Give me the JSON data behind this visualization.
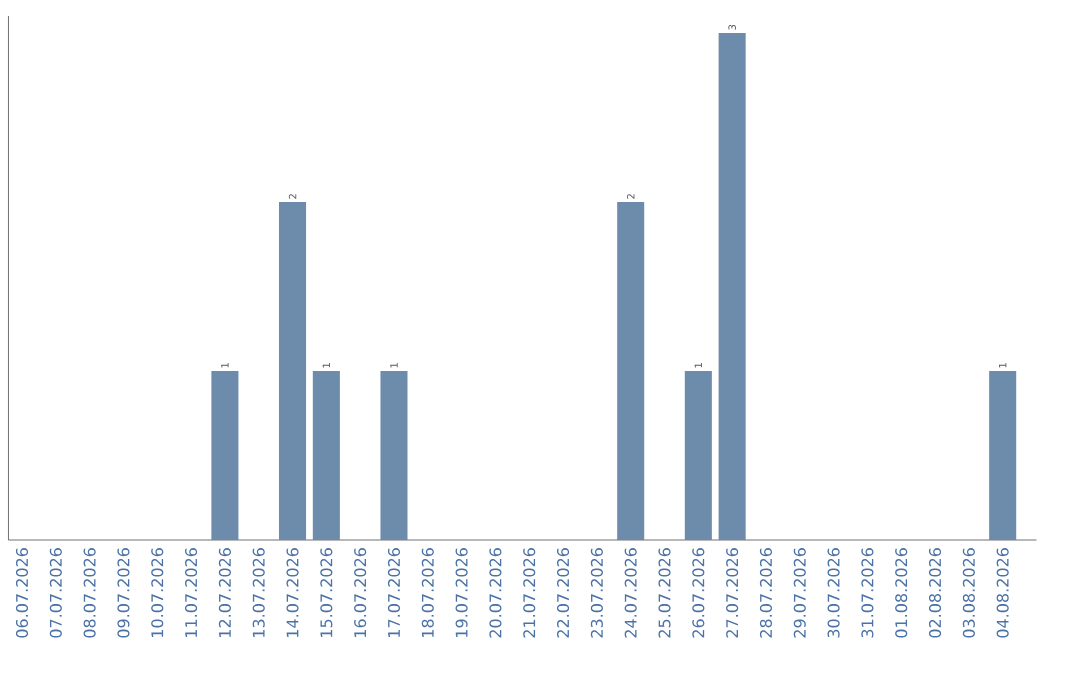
{
  "chart_data": {
    "type": "bar",
    "categories": [
      "06.07.2026",
      "07.07.2026",
      "08.07.2026",
      "09.07.2026",
      "10.07.2026",
      "11.07.2026",
      "12.07.2026",
      "13.07.2026",
      "14.07.2026",
      "15.07.2026",
      "16.07.2026",
      "17.07.2026",
      "18.07.2026",
      "19.07.2026",
      "20.07.2026",
      "21.07.2026",
      "22.07.2026",
      "23.07.2026",
      "24.07.2026",
      "25.07.2026",
      "26.07.2026",
      "27.07.2026",
      "28.07.2026",
      "29.07.2026",
      "30.07.2026",
      "31.07.2026",
      "01.08.2026",
      "02.08.2026",
      "03.08.2026",
      "04.08.2026"
    ],
    "values": [
      0,
      0,
      0,
      0,
      0,
      0,
      1,
      0,
      2,
      1,
      0,
      1,
      0,
      0,
      0,
      0,
      0,
      0,
      2,
      0,
      1,
      3,
      0,
      0,
      0,
      0,
      0,
      0,
      0,
      1
    ],
    "value_labels": [
      null,
      null,
      null,
      null,
      null,
      null,
      "1",
      null,
      "2",
      "1",
      null,
      "1",
      null,
      null,
      null,
      null,
      null,
      null,
      "2",
      null,
      "1",
      "3",
      null,
      null,
      null,
      null,
      null,
      null,
      null,
      "1"
    ],
    "color": "#6d8cab",
    "ylim": [
      0,
      3.1
    ]
  }
}
